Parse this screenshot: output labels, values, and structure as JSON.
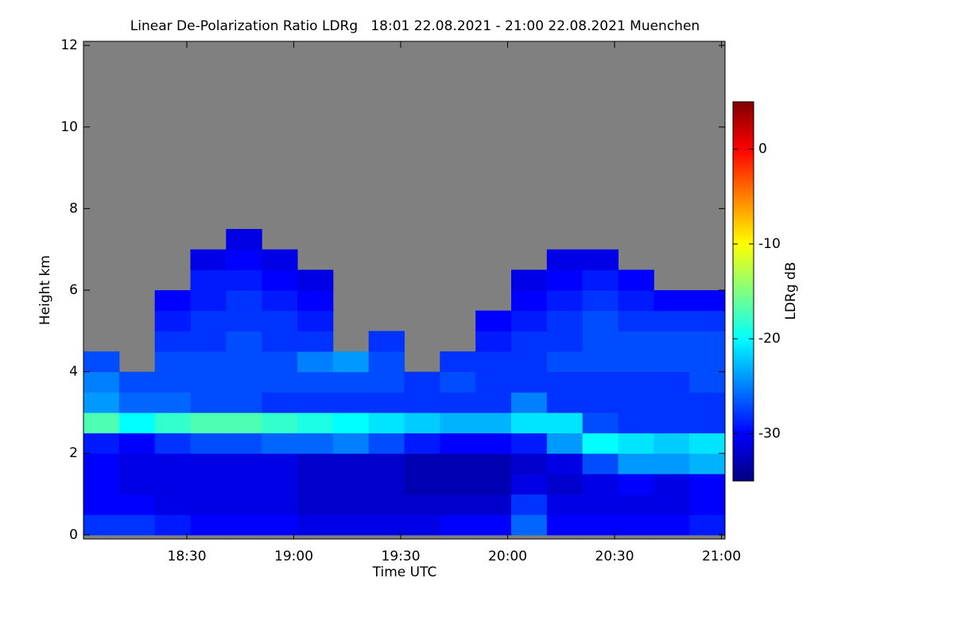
{
  "chart_data": {
    "type": "heatmap",
    "title": "Linear De-Polarization Ratio LDRg   18:01 22.08.2021 - 21:00 22.08.2021 Muenchen",
    "xlabel": "Time UTC",
    "ylabel": "Height km",
    "colorbar_label": "LDRg dB",
    "colormap": "jet",
    "nodata_color": "#808080",
    "xlim": [
      "18:01",
      "21:01"
    ],
    "xticks": [
      "18:30",
      "19:00",
      "19:30",
      "20:00",
      "20:30",
      "21:00"
    ],
    "ylim": [
      -0.1,
      12.1
    ],
    "yticks": [
      0,
      2,
      4,
      6,
      8,
      10,
      12
    ],
    "zlim": [
      -35,
      5
    ],
    "zticks": [
      0,
      -10,
      -20,
      -30
    ],
    "xbins": [
      "18:01",
      "18:11",
      "18:21",
      "18:31",
      "18:41",
      "18:51",
      "19:01",
      "19:11",
      "19:21",
      "19:31",
      "19:41",
      "19:51",
      "20:01",
      "20:11",
      "20:21",
      "20:31",
      "20:41",
      "20:51",
      "21:01"
    ],
    "ybins": [
      0,
      0.5,
      1,
      1.5,
      2,
      2.5,
      3,
      3.5,
      4,
      4.5,
      5,
      5.5,
      6,
      6.5,
      7,
      7.5,
      8
    ],
    "z": [
      [
        -28,
        -30,
        -30,
        -30,
        -29,
        -17,
        -24,
        -25,
        -27,
        null,
        null,
        null,
        null,
        null,
        null,
        null
      ],
      [
        -28,
        -30,
        -31,
        -31,
        -30,
        -20,
        -26,
        -27,
        null,
        null,
        null,
        null,
        null,
        null,
        null,
        null
      ],
      [
        -29,
        -31,
        -31,
        -31,
        -28,
        -18,
        -26,
        -27,
        -27,
        -28,
        -29,
        -30,
        null,
        null,
        null,
        null
      ],
      [
        -30,
        -31,
        -31,
        -31,
        -27,
        -17,
        -27,
        -27,
        -27,
        -28,
        -28,
        -29,
        -29,
        -31,
        null,
        null
      ],
      [
        -30,
        -31,
        -31,
        -31,
        -27,
        -17,
        -27,
        -27,
        -27,
        -27,
        -28,
        -28,
        -29,
        -30,
        -31,
        null
      ],
      [
        -30,
        -31,
        -31,
        -31,
        -26,
        -18,
        -28,
        -27,
        -27,
        -28,
        -28,
        -29,
        -30,
        -31,
        null,
        null
      ],
      [
        -31,
        -32,
        -32,
        -32,
        -26,
        -19,
        -28,
        -27,
        -25,
        -28,
        -29,
        -30,
        -31,
        null,
        null,
        null
      ],
      [
        -31,
        -32,
        -32,
        -32,
        -25,
        -20,
        -28,
        -27,
        -24,
        null,
        null,
        null,
        null,
        null,
        null,
        null
      ],
      [
        -31,
        -32,
        -32,
        -32,
        -27,
        -21,
        -28,
        -27,
        -27,
        -28,
        null,
        null,
        null,
        null,
        null,
        null
      ],
      [
        -31,
        -32,
        -33,
        -33,
        -29,
        -22,
        -28,
        -28,
        null,
        null,
        null,
        null,
        null,
        null,
        null,
        null
      ],
      [
        -30,
        -32,
        -33,
        -33,
        -30,
        -23,
        -28,
        -27,
        -28,
        null,
        null,
        null,
        null,
        null,
        null,
        null
      ],
      [
        -30,
        -32,
        -33,
        -33,
        -30,
        -23,
        -28,
        -28,
        -28,
        -29,
        -30,
        null,
        null,
        null,
        null,
        null
      ],
      [
        -26,
        -28,
        -31,
        -32,
        -29,
        -21,
        -25,
        -28,
        -28,
        -28,
        -29,
        -30,
        -31,
        null,
        null,
        null
      ],
      [
        -30,
        -31,
        -32,
        -31,
        -24,
        -21,
        -28,
        -28,
        -27,
        -28,
        -28,
        -29,
        -30,
        -31,
        null,
        null
      ],
      [
        -30,
        -31,
        -31,
        -27,
        -20,
        -27,
        -28,
        -28,
        -27,
        -27,
        -27,
        -28,
        -29,
        -31,
        null,
        null
      ],
      [
        -30,
        -31,
        -30,
        -24,
        -21,
        -28,
        -28,
        -28,
        -27,
        -27,
        -28,
        -29,
        -30,
        null,
        null,
        null
      ],
      [
        -30,
        -31,
        -31,
        -24,
        -22,
        -28,
        -28,
        -28,
        -27,
        -27,
        -28,
        -30,
        null,
        null,
        null,
        null
      ],
      [
        -29,
        -30,
        -30,
        -23,
        -21,
        -28,
        -28,
        -27,
        -27,
        -27,
        -28,
        -30,
        null,
        null,
        null,
        null
      ]
    ]
  }
}
